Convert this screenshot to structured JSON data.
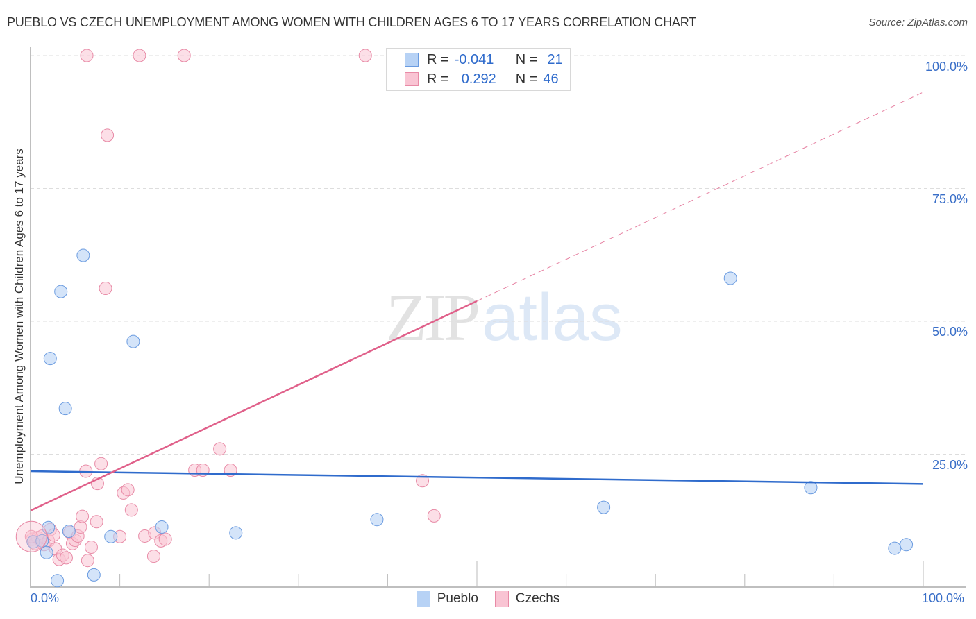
{
  "header": {
    "title": "PUEBLO VS CZECH UNEMPLOYMENT AMONG WOMEN WITH CHILDREN AGES 6 TO 17 YEARS CORRELATION CHART",
    "source": "Source: ZipAtlas.com"
  },
  "legend_box": {
    "rows": [
      {
        "r_label": "R =",
        "r_value": "-0.041",
        "n_label": "N =",
        "n_value": "21"
      },
      {
        "r_label": "R =",
        "r_value": "0.292",
        "n_label": "N =",
        "n_value": "46"
      }
    ]
  },
  "axes": {
    "ylabel": "Unemployment Among Women with Children Ages 6 to 17 years",
    "y_ticks": [
      "100.0%",
      "75.0%",
      "50.0%",
      "25.0%"
    ],
    "x_ticks": [
      "0.0%",
      "100.0%"
    ]
  },
  "bottom_legend": {
    "items": [
      {
        "label": "Pueblo"
      },
      {
        "label": "Czechs"
      }
    ]
  },
  "watermark": {
    "zip": "ZIP",
    "atlas": "atlas"
  },
  "colors": {
    "pueblo_fill": "#b7d2f5",
    "pueblo_stroke": "#6a9be0",
    "pueblo_line": "#2f6bcc",
    "czechs_fill": "#f9c4d3",
    "czechs_stroke": "#e88aa6",
    "czechs_line": "#e0608a",
    "tick_label": "#3a6fc8"
  },
  "chart_data": {
    "type": "scatter",
    "title": "PUEBLO VS CZECH UNEMPLOYMENT AMONG WOMEN WITH CHILDREN AGES 6 TO 17 YEARS CORRELATION CHART",
    "xlabel": "",
    "ylabel": "Unemployment Among Women with Children Ages 6 to 17 years",
    "xlim": [
      0,
      100
    ],
    "ylim": [
      0,
      100
    ],
    "x_tick_labels": [
      "0.0%",
      "100.0%"
    ],
    "y_tick_labels": [
      "25.0%",
      "50.0%",
      "75.0%",
      "100.0%"
    ],
    "grid": "horizontal dashed at 25, 50, 75, 100",
    "legend_position": "bottom-center",
    "series": [
      {
        "name": "Pueblo",
        "R": -0.041,
        "N": 21,
        "points": [
          [
            0.3,
            8.5
          ],
          [
            1.3,
            8.7
          ],
          [
            1.8,
            6.5
          ],
          [
            2.0,
            11.2
          ],
          [
            2.2,
            43.0
          ],
          [
            3.0,
            1.2
          ],
          [
            3.4,
            55.6
          ],
          [
            3.9,
            33.6
          ],
          [
            4.3,
            10.5
          ],
          [
            5.9,
            62.4
          ],
          [
            7.1,
            2.3
          ],
          [
            9.0,
            9.5
          ],
          [
            11.5,
            46.2
          ],
          [
            14.7,
            11.3
          ],
          [
            23.0,
            10.2
          ],
          [
            38.8,
            12.7
          ],
          [
            64.2,
            15.0
          ],
          [
            78.4,
            58.1
          ],
          [
            87.4,
            18.7
          ],
          [
            96.8,
            7.3
          ],
          [
            98.1,
            8.0
          ]
        ],
        "trend": {
          "x": [
            0,
            100
          ],
          "y": [
            21.8,
            19.4
          ]
        }
      },
      {
        "name": "Czechs",
        "R": 0.292,
        "N": 46,
        "points": [
          [
            0.2,
            9.0
          ],
          [
            0.5,
            8.2
          ],
          [
            0.8,
            9.3
          ],
          [
            1.3,
            9.6
          ],
          [
            1.5,
            8.0
          ],
          [
            2.0,
            8.7
          ],
          [
            2.2,
            10.8
          ],
          [
            2.6,
            9.8
          ],
          [
            2.8,
            7.2
          ],
          [
            3.2,
            5.2
          ],
          [
            3.6,
            6.0
          ],
          [
            4.0,
            5.5
          ],
          [
            4.4,
            10.3
          ],
          [
            4.7,
            8.2
          ],
          [
            5.0,
            8.8
          ],
          [
            5.3,
            9.6
          ],
          [
            5.6,
            11.3
          ],
          [
            5.8,
            13.3
          ],
          [
            6.2,
            21.8
          ],
          [
            6.4,
            5.0
          ],
          [
            6.8,
            7.5
          ],
          [
            6.3,
            100.0
          ],
          [
            7.4,
            12.3
          ],
          [
            7.5,
            19.5
          ],
          [
            7.9,
            23.2
          ],
          [
            8.4,
            56.2
          ],
          [
            8.6,
            85.0
          ],
          [
            10.0,
            9.5
          ],
          [
            10.4,
            17.7
          ],
          [
            10.9,
            18.3
          ],
          [
            11.3,
            14.5
          ],
          [
            12.2,
            100.0
          ],
          [
            12.8,
            9.6
          ],
          [
            13.8,
            5.8
          ],
          [
            13.9,
            10.2
          ],
          [
            14.6,
            8.7
          ],
          [
            15.1,
            9.0
          ],
          [
            17.2,
            100.0
          ],
          [
            18.4,
            22.0
          ],
          [
            19.3,
            22.0
          ],
          [
            21.2,
            26.0
          ],
          [
            22.4,
            22.0
          ],
          [
            37.5,
            100.0
          ],
          [
            43.9,
            20.0
          ],
          [
            45.2,
            13.4
          ],
          [
            0.1,
            9.5
          ]
        ],
        "trend": {
          "x": [
            0,
            50,
            100
          ],
          "y": [
            14.4,
            53.8,
            93.1
          ],
          "solid_until_x": 50,
          "dashed_after_x": 50
        }
      }
    ]
  }
}
